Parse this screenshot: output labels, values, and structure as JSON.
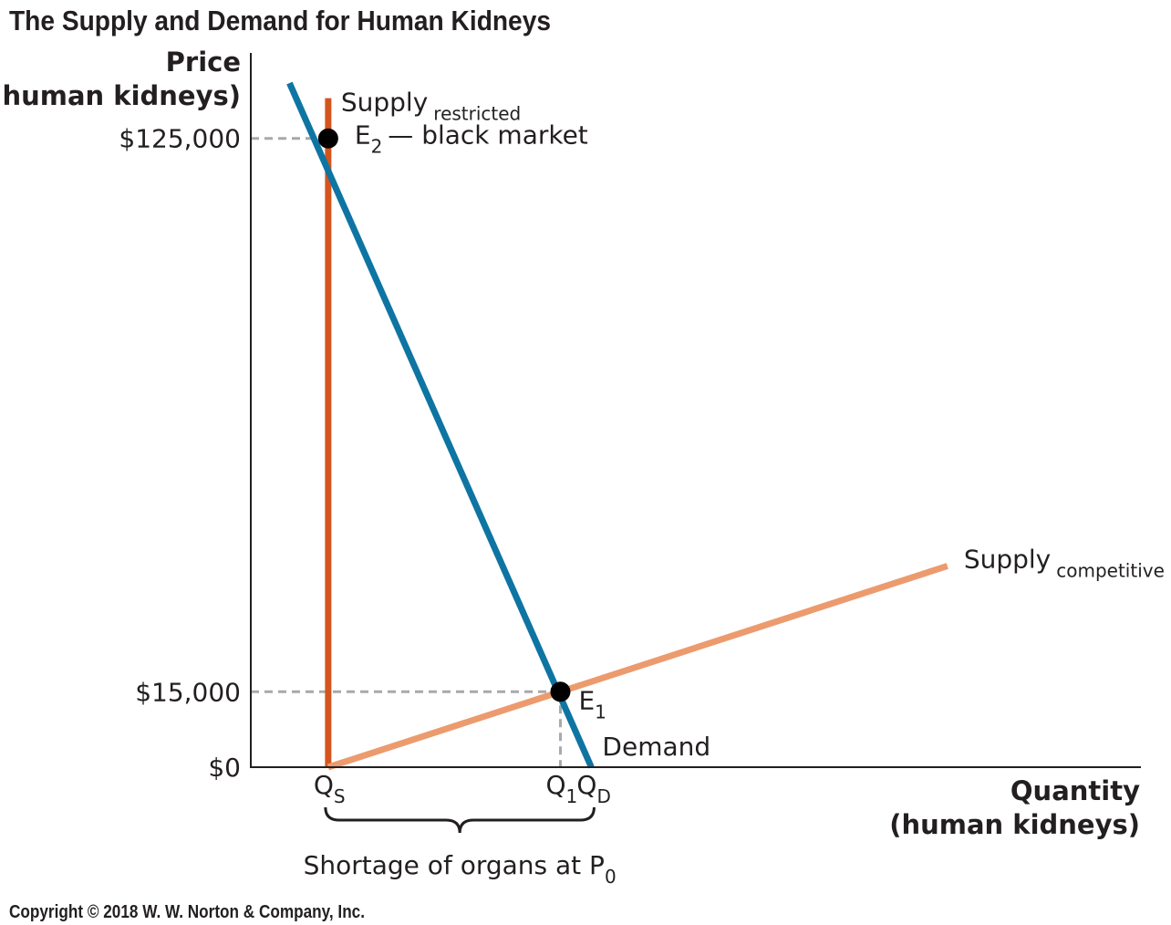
{
  "chart_data": {
    "type": "line",
    "title": "The Supply and Demand for Human Kidneys",
    "ylabel_line1": "Price",
    "ylabel_line2": "(human kidneys)",
    "xlabel_line1": "Quantity",
    "xlabel_line2": "(human kidneys)",
    "x_ticks": [
      {
        "main": "Q",
        "sub": "S",
        "x": 1
      },
      {
        "main": "Q",
        "sub": "1",
        "x": 4
      },
      {
        "main": "Q",
        "sub": "D",
        "x": 4.4
      }
    ],
    "y_ticks": [
      {
        "label": "$0",
        "value": 0
      },
      {
        "label": "$15,000",
        "value": 15000
      },
      {
        "label": "$125,000",
        "value": 125000
      }
    ],
    "xlim": [
      0,
      11.5
    ],
    "ylim": [
      0,
      142000
    ],
    "series": [
      {
        "name": "Demand",
        "color": "#0e75a3",
        "points": [
          [
            0.5,
            136000
          ],
          [
            4.4,
            0
          ]
        ]
      },
      {
        "name": "Supply",
        "sub": "competitive",
        "color": "#ec9b6e",
        "points": [
          [
            1,
            0
          ],
          [
            9,
            40000
          ]
        ]
      },
      {
        "name": "Supply",
        "sub": "restricted",
        "color": "#d4541e",
        "points": [
          [
            1,
            0
          ],
          [
            1,
            133000
          ]
        ]
      }
    ],
    "equilibria": [
      {
        "label": "E",
        "sub": "2",
        "suffix": "— black market",
        "x": 1,
        "y": 125000
      },
      {
        "label": "E",
        "sub": "1",
        "suffix": "",
        "x": 4,
        "y": 15000
      }
    ],
    "brace_label": "Shortage of organs at P",
    "brace_label_sub": "0",
    "brace_range": [
      1,
      4.4
    ]
  },
  "copyright": "Copyright © 2018 W. W. Norton & Company, Inc."
}
